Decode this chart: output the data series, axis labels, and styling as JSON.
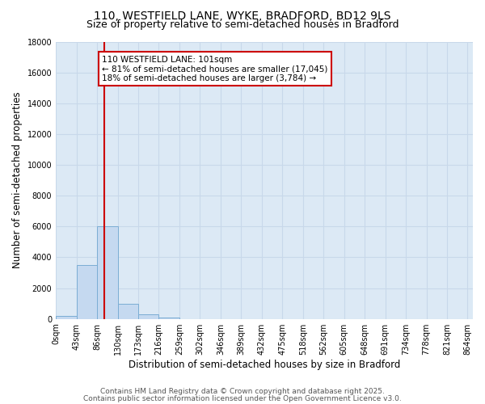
{
  "title_line1": "110, WESTFIELD LANE, WYKE, BRADFORD, BD12 9LS",
  "title_line2": "Size of property relative to semi-detached houses in Bradford",
  "xlabel": "Distribution of semi-detached houses by size in Bradford",
  "ylabel": "Number of semi-detached properties",
  "bar_left_edges": [
    0,
    43,
    86,
    129,
    172,
    215,
    258,
    301,
    344,
    387,
    430,
    473,
    516,
    559,
    602,
    645,
    688,
    731,
    774,
    817
  ],
  "bar_heights": [
    200,
    3500,
    6000,
    1000,
    300,
    80,
    10,
    0,
    0,
    0,
    0,
    0,
    0,
    0,
    0,
    0,
    0,
    0,
    0,
    0
  ],
  "bin_width": 43,
  "bar_color": "#c5d9f0",
  "bar_edge_color": "#7badd4",
  "vline_color": "#cc0000",
  "vline_x": 101,
  "annotation_title": "110 WESTFIELD LANE: 101sqm",
  "annotation_line1": "← 81% of semi-detached houses are smaller (17,045)",
  "annotation_line2": "18% of semi-detached houses are larger (3,784) →",
  "annotation_box_color": "#ffffff",
  "annotation_box_edge": "#cc0000",
  "ylim": [
    0,
    18000
  ],
  "xlim": [
    0,
    871
  ],
  "yticks": [
    0,
    2000,
    4000,
    6000,
    8000,
    10000,
    12000,
    14000,
    16000,
    18000
  ],
  "xtick_positions": [
    0,
    43,
    86,
    129,
    172,
    215,
    258,
    301,
    344,
    387,
    430,
    473,
    516,
    559,
    602,
    645,
    688,
    731,
    774,
    817,
    860
  ],
  "xtick_labels": [
    "0sqm",
    "43sqm",
    "86sqm",
    "130sqm",
    "173sqm",
    "216sqm",
    "259sqm",
    "302sqm",
    "346sqm",
    "389sqm",
    "432sqm",
    "475sqm",
    "518sqm",
    "562sqm",
    "605sqm",
    "648sqm",
    "691sqm",
    "734sqm",
    "778sqm",
    "821sqm",
    "864sqm"
  ],
  "bg_color": "#dce9f5",
  "fig_bg_color": "#ffffff",
  "grid_color": "#c8d8ea",
  "footer_line1": "Contains HM Land Registry data © Crown copyright and database right 2025.",
  "footer_line2": "Contains public sector information licensed under the Open Government Licence v3.0.",
  "title_fontsize": 10,
  "subtitle_fontsize": 9,
  "axis_label_fontsize": 8.5,
  "tick_fontsize": 7,
  "annot_fontsize": 7.5,
  "footer_fontsize": 6.5
}
